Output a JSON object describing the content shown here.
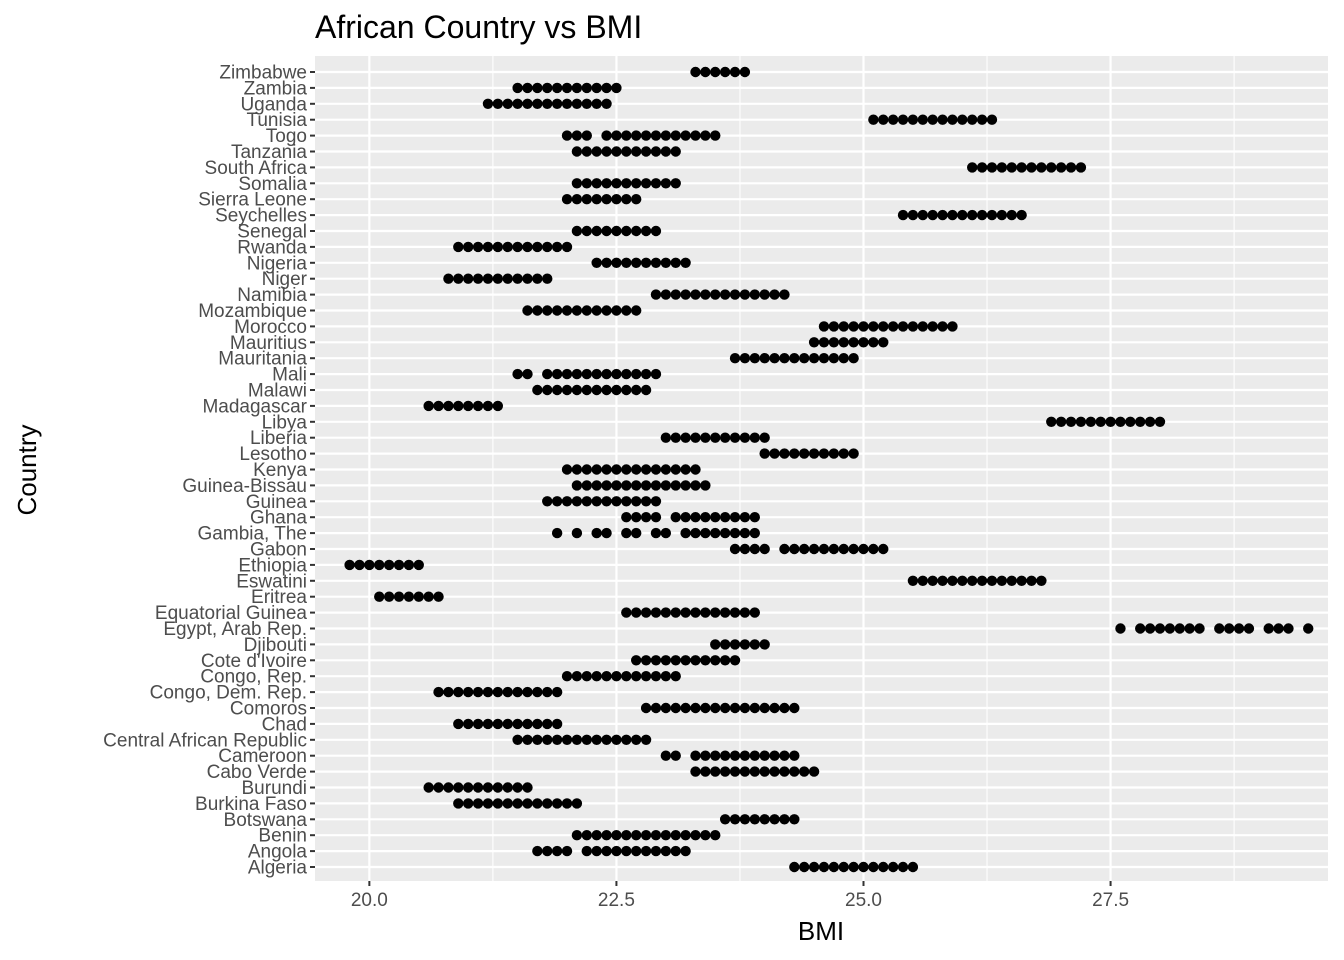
{
  "chart_data": {
    "type": "scatter",
    "title": "African Country vs BMI",
    "xlabel": "BMI",
    "ylabel": "Country",
    "xlim": [
      19.45,
      29.7
    ],
    "x_ticks": [
      "20.0",
      "22.5",
      "25.0",
      "27.5"
    ],
    "grid": true,
    "legend": "none",
    "point_color": "#000000",
    "panel_background": "#ebebeb",
    "grid_color": "#ffffff",
    "categories": [
      "Algeria",
      "Angola",
      "Benin",
      "Botswana",
      "Burkina Faso",
      "Burundi",
      "Cabo Verde",
      "Cameroon",
      "Central African Republic",
      "Chad",
      "Comoros",
      "Congo, Dem. Rep.",
      "Congo, Rep.",
      "Cote d'Ivoire",
      "Djibouti",
      "Egypt, Arab Rep.",
      "Equatorial Guinea",
      "Eritrea",
      "Eswatini",
      "Ethiopia",
      "Gabon",
      "Gambia, The",
      "Ghana",
      "Guinea",
      "Guinea-Bissau",
      "Kenya",
      "Lesotho",
      "Liberia",
      "Libya",
      "Madagascar",
      "Malawi",
      "Mali",
      "Mauritania",
      "Mauritius",
      "Morocco",
      "Mozambique",
      "Namibia",
      "Niger",
      "Nigeria",
      "Rwanda",
      "Senegal",
      "Seychelles",
      "Sierra Leone",
      "Somalia",
      "South Africa",
      "Tanzania",
      "Togo",
      "Tunisia",
      "Uganda",
      "Zambia",
      "Zimbabwe"
    ],
    "series": [
      {
        "country": "Algeria",
        "x": [
          24.3,
          24.4,
          24.5,
          24.6,
          24.7,
          24.8,
          24.9,
          25.0,
          25.1,
          25.2,
          25.3,
          25.4,
          25.5
        ]
      },
      {
        "country": "Angola",
        "x": [
          21.7,
          21.8,
          21.9,
          22.0,
          22.2,
          22.3,
          22.4,
          22.5,
          22.6,
          22.7,
          22.8,
          22.9,
          23.0,
          23.1,
          23.2
        ]
      },
      {
        "country": "Benin",
        "x": [
          22.1,
          22.2,
          22.3,
          22.4,
          22.5,
          22.6,
          22.7,
          22.8,
          22.9,
          23.0,
          23.1,
          23.2,
          23.3,
          23.4,
          23.5
        ]
      },
      {
        "country": "Botswana",
        "x": [
          23.6,
          23.7,
          23.8,
          23.9,
          24.0,
          24.1,
          24.2,
          24.3
        ]
      },
      {
        "country": "Burkina Faso",
        "x": [
          20.9,
          21.0,
          21.1,
          21.2,
          21.3,
          21.4,
          21.5,
          21.6,
          21.7,
          21.8,
          21.9,
          22.0,
          22.1
        ]
      },
      {
        "country": "Burundi",
        "x": [
          20.6,
          20.7,
          20.8,
          20.9,
          21.0,
          21.1,
          21.2,
          21.3,
          21.4,
          21.5,
          21.6
        ]
      },
      {
        "country": "Cabo Verde",
        "x": [
          23.3,
          23.4,
          23.5,
          23.6,
          23.7,
          23.8,
          23.9,
          24.0,
          24.1,
          24.2,
          24.3,
          24.4,
          24.5
        ]
      },
      {
        "country": "Cameroon",
        "x": [
          23.0,
          23.1,
          23.3,
          23.4,
          23.5,
          23.6,
          23.7,
          23.8,
          23.9,
          24.0,
          24.1,
          24.2,
          24.3
        ]
      },
      {
        "country": "Central African Republic",
        "x": [
          21.5,
          21.6,
          21.7,
          21.8,
          21.9,
          22.0,
          22.1,
          22.2,
          22.3,
          22.4,
          22.5,
          22.6,
          22.7,
          22.8
        ]
      },
      {
        "country": "Chad",
        "x": [
          20.9,
          21.0,
          21.1,
          21.2,
          21.3,
          21.4,
          21.5,
          21.6,
          21.7,
          21.8,
          21.9
        ]
      },
      {
        "country": "Comoros",
        "x": [
          22.8,
          22.9,
          23.0,
          23.1,
          23.2,
          23.3,
          23.4,
          23.5,
          23.6,
          23.7,
          23.8,
          23.9,
          24.0,
          24.1,
          24.2,
          24.3
        ]
      },
      {
        "country": "Congo, Dem. Rep.",
        "x": [
          20.7,
          20.8,
          20.9,
          21.0,
          21.1,
          21.2,
          21.3,
          21.4,
          21.5,
          21.6,
          21.7,
          21.8,
          21.9
        ]
      },
      {
        "country": "Congo, Rep.",
        "x": [
          22.0,
          22.1,
          22.2,
          22.3,
          22.4,
          22.5,
          22.6,
          22.7,
          22.8,
          22.9,
          23.0,
          23.1
        ]
      },
      {
        "country": "Cote d'Ivoire",
        "x": [
          22.7,
          22.8,
          22.9,
          23.0,
          23.1,
          23.2,
          23.3,
          23.4,
          23.5,
          23.6,
          23.7
        ]
      },
      {
        "country": "Djibouti",
        "x": [
          23.5,
          23.6,
          23.7,
          23.8,
          23.9,
          24.0
        ]
      },
      {
        "country": "Egypt, Arab Rep.",
        "x": [
          27.6,
          27.8,
          27.9,
          28.0,
          28.1,
          28.2,
          28.3,
          28.4,
          28.6,
          28.7,
          28.8,
          28.9,
          29.1,
          29.2,
          29.3,
          29.5
        ]
      },
      {
        "country": "Equatorial Guinea",
        "x": [
          22.6,
          22.7,
          22.8,
          22.9,
          23.0,
          23.1,
          23.2,
          23.3,
          23.4,
          23.5,
          23.6,
          23.7,
          23.8,
          23.9
        ]
      },
      {
        "country": "Eritrea",
        "x": [
          20.1,
          20.2,
          20.3,
          20.4,
          20.5,
          20.6,
          20.7
        ]
      },
      {
        "country": "Eswatini",
        "x": [
          25.5,
          25.6,
          25.7,
          25.8,
          25.9,
          26.0,
          26.1,
          26.2,
          26.3,
          26.4,
          26.5,
          26.6,
          26.7,
          26.8
        ]
      },
      {
        "country": "Ethiopia",
        "x": [
          19.8,
          19.9,
          20.0,
          20.1,
          20.2,
          20.3,
          20.4,
          20.5
        ]
      },
      {
        "country": "Gabon",
        "x": [
          23.7,
          23.8,
          23.9,
          24.0,
          24.2,
          24.3,
          24.4,
          24.5,
          24.6,
          24.7,
          24.8,
          24.9,
          25.0,
          25.1,
          25.2
        ]
      },
      {
        "country": "Gambia, The",
        "x": [
          21.9,
          22.1,
          22.3,
          22.4,
          22.6,
          22.7,
          22.9,
          23.0,
          23.2,
          23.3,
          23.4,
          23.5,
          23.6,
          23.7,
          23.8,
          23.9
        ]
      },
      {
        "country": "Ghana",
        "x": [
          22.6,
          22.7,
          22.8,
          22.9,
          23.1,
          23.2,
          23.3,
          23.4,
          23.5,
          23.6,
          23.7,
          23.8,
          23.9
        ]
      },
      {
        "country": "Guinea",
        "x": [
          21.8,
          21.9,
          22.0,
          22.1,
          22.2,
          22.3,
          22.4,
          22.5,
          22.6,
          22.7,
          22.8,
          22.9
        ]
      },
      {
        "country": "Guinea-Bissau",
        "x": [
          22.1,
          22.2,
          22.3,
          22.4,
          22.5,
          22.6,
          22.7,
          22.8,
          22.9,
          23.0,
          23.1,
          23.2,
          23.3,
          23.4
        ]
      },
      {
        "country": "Kenya",
        "x": [
          22.0,
          22.1,
          22.2,
          22.3,
          22.4,
          22.5,
          22.6,
          22.7,
          22.8,
          22.9,
          23.0,
          23.1,
          23.2,
          23.3
        ]
      },
      {
        "country": "Lesotho",
        "x": [
          24.0,
          24.1,
          24.2,
          24.3,
          24.4,
          24.5,
          24.6,
          24.7,
          24.8,
          24.9
        ]
      },
      {
        "country": "Liberia",
        "x": [
          23.0,
          23.1,
          23.2,
          23.3,
          23.4,
          23.5,
          23.6,
          23.7,
          23.8,
          23.9,
          24.0
        ]
      },
      {
        "country": "Libya",
        "x": [
          26.9,
          27.0,
          27.1,
          27.2,
          27.3,
          27.4,
          27.5,
          27.6,
          27.7,
          27.8,
          27.9,
          28.0
        ]
      },
      {
        "country": "Madagascar",
        "x": [
          20.6,
          20.7,
          20.8,
          20.9,
          21.0,
          21.1,
          21.2,
          21.3
        ]
      },
      {
        "country": "Malawi",
        "x": [
          21.7,
          21.8,
          21.9,
          22.0,
          22.1,
          22.2,
          22.3,
          22.4,
          22.5,
          22.6,
          22.7,
          22.8
        ]
      },
      {
        "country": "Mali",
        "x": [
          21.5,
          21.6,
          21.8,
          21.9,
          22.0,
          22.1,
          22.2,
          22.3,
          22.4,
          22.5,
          22.6,
          22.7,
          22.8,
          22.9
        ]
      },
      {
        "country": "Mauritania",
        "x": [
          23.7,
          23.8,
          23.9,
          24.0,
          24.1,
          24.2,
          24.3,
          24.4,
          24.5,
          24.6,
          24.7,
          24.8,
          24.9
        ]
      },
      {
        "country": "Mauritius",
        "x": [
          24.5,
          24.6,
          24.7,
          24.8,
          24.9,
          25.0,
          25.1,
          25.2
        ]
      },
      {
        "country": "Morocco",
        "x": [
          24.6,
          24.7,
          24.8,
          24.9,
          25.0,
          25.1,
          25.2,
          25.3,
          25.4,
          25.5,
          25.6,
          25.7,
          25.8,
          25.9
        ]
      },
      {
        "country": "Mozambique",
        "x": [
          21.6,
          21.7,
          21.8,
          21.9,
          22.0,
          22.1,
          22.2,
          22.3,
          22.4,
          22.5,
          22.6,
          22.7
        ]
      },
      {
        "country": "Namibia",
        "x": [
          22.9,
          23.0,
          23.1,
          23.2,
          23.3,
          23.4,
          23.5,
          23.6,
          23.7,
          23.8,
          23.9,
          24.0,
          24.1,
          24.2
        ]
      },
      {
        "country": "Niger",
        "x": [
          20.8,
          20.9,
          21.0,
          21.1,
          21.2,
          21.3,
          21.4,
          21.5,
          21.6,
          21.7,
          21.8
        ]
      },
      {
        "country": "Nigeria",
        "x": [
          22.3,
          22.4,
          22.5,
          22.6,
          22.7,
          22.8,
          22.9,
          23.0,
          23.1,
          23.2
        ]
      },
      {
        "country": "Rwanda",
        "x": [
          20.9,
          21.0,
          21.1,
          21.2,
          21.3,
          21.4,
          21.5,
          21.6,
          21.7,
          21.8,
          21.9,
          22.0
        ]
      },
      {
        "country": "Senegal",
        "x": [
          22.1,
          22.2,
          22.3,
          22.4,
          22.5,
          22.6,
          22.7,
          22.8,
          22.9
        ]
      },
      {
        "country": "Seychelles",
        "x": [
          25.4,
          25.5,
          25.6,
          25.7,
          25.8,
          25.9,
          26.0,
          26.1,
          26.2,
          26.3,
          26.4,
          26.5,
          26.6
        ]
      },
      {
        "country": "Sierra Leone",
        "x": [
          22.0,
          22.1,
          22.2,
          22.3,
          22.4,
          22.5,
          22.6,
          22.7
        ]
      },
      {
        "country": "Somalia",
        "x": [
          22.1,
          22.2,
          22.3,
          22.4,
          22.5,
          22.6,
          22.7,
          22.8,
          22.9,
          23.0,
          23.1
        ]
      },
      {
        "country": "South Africa",
        "x": [
          26.1,
          26.2,
          26.3,
          26.4,
          26.5,
          26.6,
          26.7,
          26.8,
          26.9,
          27.0,
          27.1,
          27.2
        ]
      },
      {
        "country": "Tanzania",
        "x": [
          22.1,
          22.2,
          22.3,
          22.4,
          22.5,
          22.6,
          22.7,
          22.8,
          22.9,
          23.0,
          23.1
        ]
      },
      {
        "country": "Togo",
        "x": [
          22.0,
          22.1,
          22.2,
          22.4,
          22.5,
          22.6,
          22.7,
          22.8,
          22.9,
          23.0,
          23.1,
          23.2,
          23.3,
          23.4,
          23.5
        ]
      },
      {
        "country": "Tunisia",
        "x": [
          25.1,
          25.2,
          25.3,
          25.4,
          25.5,
          25.6,
          25.7,
          25.8,
          25.9,
          26.0,
          26.1,
          26.2,
          26.3
        ]
      },
      {
        "country": "Uganda",
        "x": [
          21.2,
          21.3,
          21.4,
          21.5,
          21.6,
          21.7,
          21.8,
          21.9,
          22.0,
          22.1,
          22.2,
          22.3,
          22.4
        ]
      },
      {
        "country": "Zambia",
        "x": [
          21.5,
          21.6,
          21.7,
          21.8,
          21.9,
          22.0,
          22.1,
          22.2,
          22.3,
          22.4,
          22.5
        ]
      },
      {
        "country": "Zimbabwe",
        "x": [
          23.3,
          23.4,
          23.5,
          23.6,
          23.7,
          23.8
        ]
      }
    ]
  }
}
